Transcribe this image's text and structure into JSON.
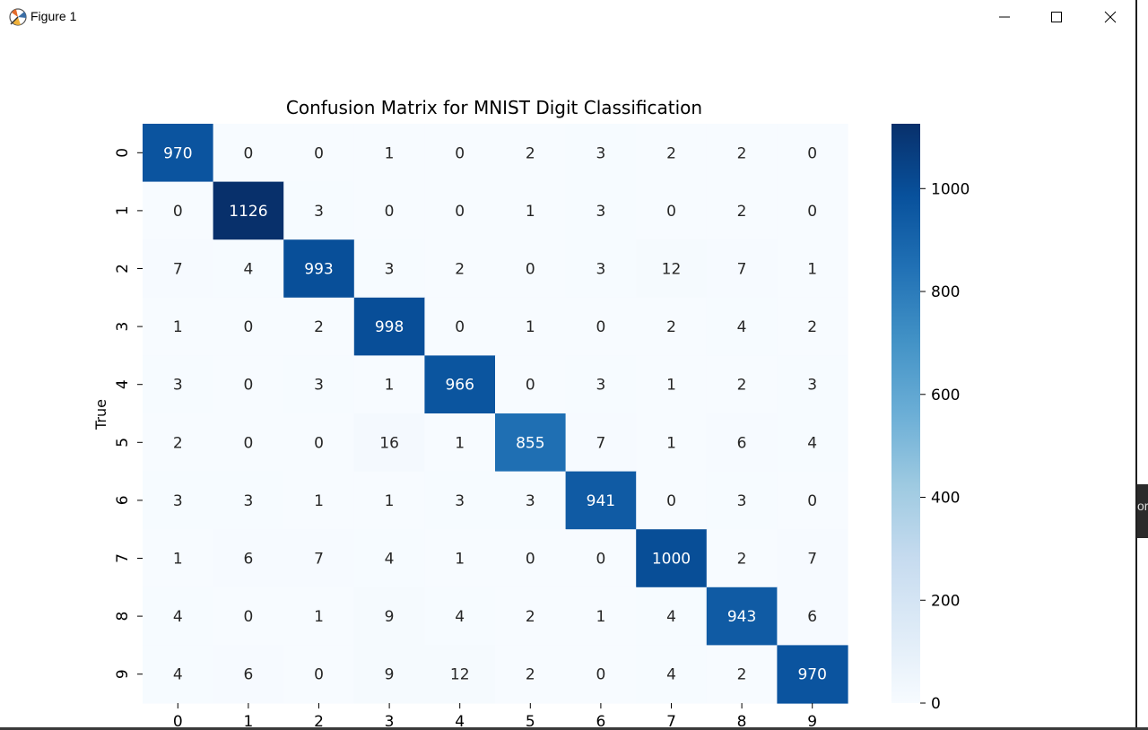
{
  "window": {
    "title": "Figure 1",
    "app_icon": "matplotlib-icon",
    "controls": [
      "minimize-icon",
      "maximize-icon",
      "close-icon"
    ]
  },
  "edge_text": "or",
  "chart_data": {
    "type": "heatmap",
    "title": "Confusion Matrix for MNIST Digit Classification",
    "xlabel": "",
    "ylabel": "True",
    "x_categories": [
      "0",
      "1",
      "2",
      "3",
      "4",
      "5",
      "6",
      "7",
      "8",
      "9"
    ],
    "y_categories": [
      "0",
      "1",
      "2",
      "3",
      "4",
      "5",
      "6",
      "7",
      "8",
      "9"
    ],
    "values": [
      [
        970,
        0,
        0,
        1,
        0,
        2,
        3,
        2,
        2,
        0
      ],
      [
        0,
        1126,
        3,
        0,
        0,
        1,
        3,
        0,
        2,
        0
      ],
      [
        7,
        4,
        993,
        3,
        2,
        0,
        3,
        12,
        7,
        1
      ],
      [
        1,
        0,
        2,
        998,
        0,
        1,
        0,
        2,
        4,
        2
      ],
      [
        3,
        0,
        3,
        1,
        966,
        0,
        3,
        1,
        2,
        3
      ],
      [
        2,
        0,
        0,
        16,
        1,
        855,
        7,
        1,
        6,
        4
      ],
      [
        3,
        3,
        1,
        1,
        3,
        3,
        941,
        0,
        3,
        0
      ],
      [
        1,
        6,
        7,
        4,
        1,
        0,
        0,
        1000,
        2,
        7
      ],
      [
        4,
        0,
        1,
        9,
        4,
        2,
        1,
        4,
        943,
        6
      ],
      [
        4,
        6,
        0,
        9,
        12,
        2,
        0,
        4,
        2,
        970
      ]
    ],
    "colormap": "Blues",
    "vmin": 0,
    "vmax": 1126,
    "colorbar_ticks": [
      0,
      200,
      400,
      600,
      800,
      1000
    ],
    "grid": false
  }
}
